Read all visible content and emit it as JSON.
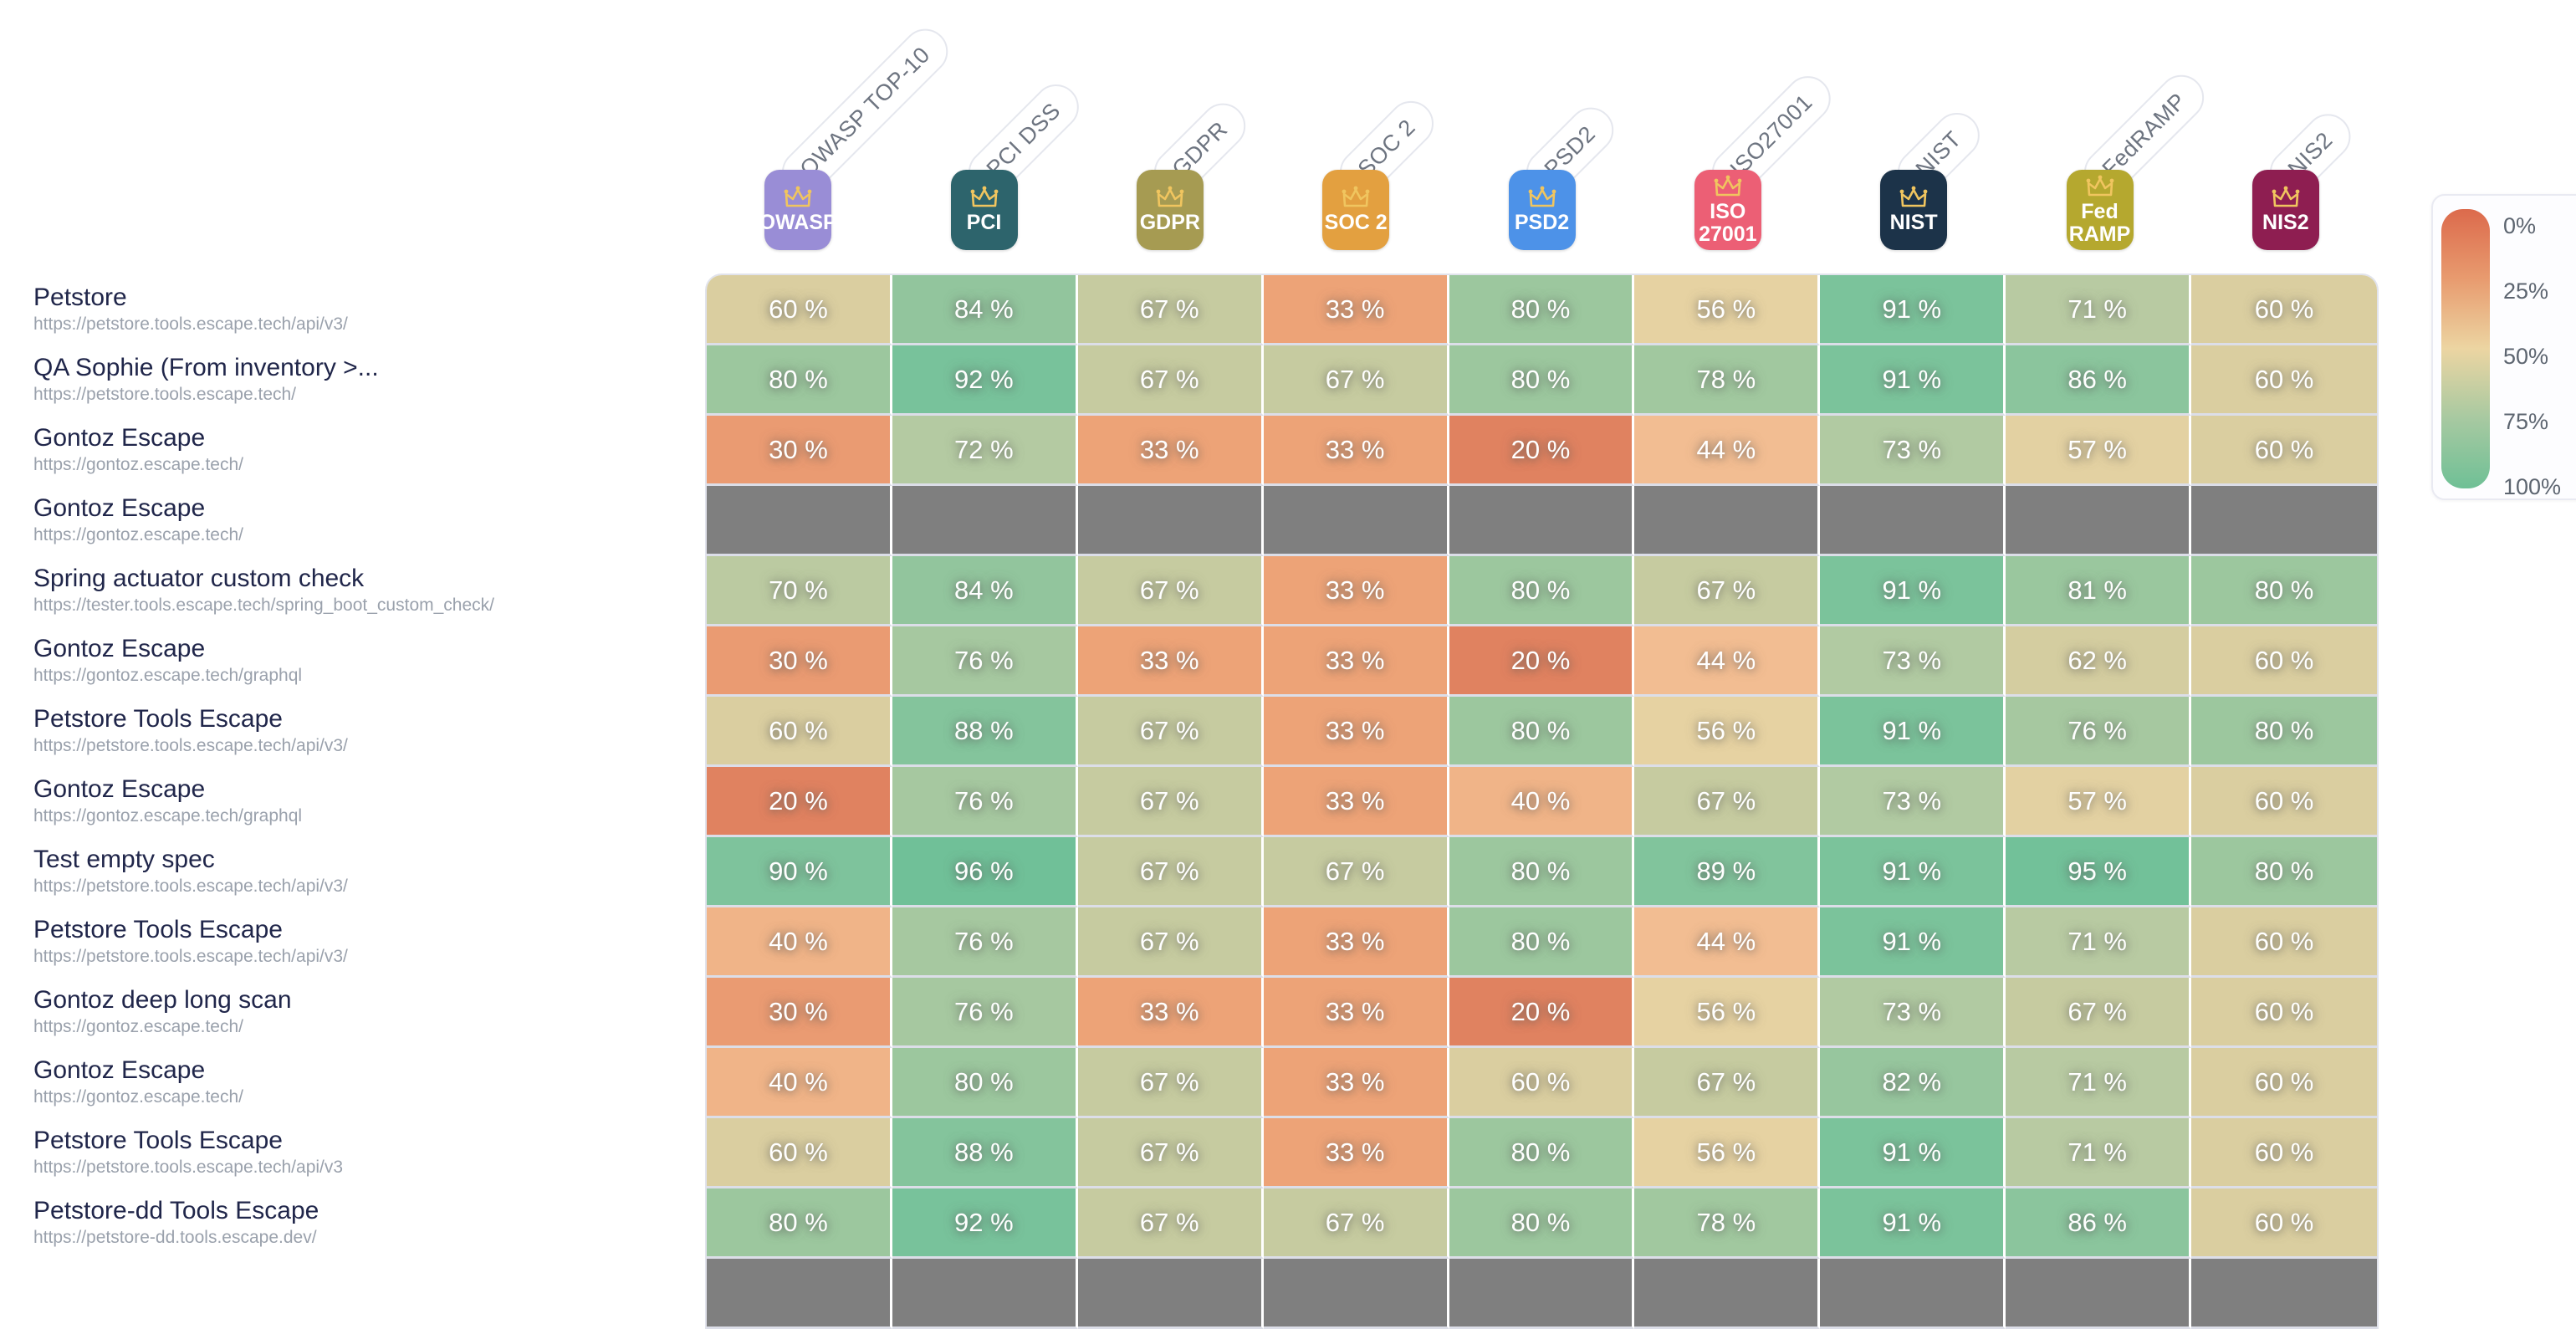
{
  "header": {
    "columns": [
      {
        "key": "owasp",
        "badge_label": "OWASP",
        "rotated_label": "OWASP TOP-10",
        "color": "#998dd6"
      },
      {
        "key": "pci",
        "badge_label": "PCI",
        "rotated_label": "PCI DSS",
        "color": "#2d646c"
      },
      {
        "key": "gdpr",
        "badge_label": "GDPR",
        "rotated_label": "GDPR",
        "color": "#a69b52"
      },
      {
        "key": "soc2",
        "badge_label": "SOC 2",
        "rotated_label": "SOC 2",
        "color": "#e3a040"
      },
      {
        "key": "psd2",
        "badge_label": "PSD2",
        "rotated_label": "PSD2",
        "color": "#4d92e8"
      },
      {
        "key": "iso27001",
        "badge_label": "ISO\n27001",
        "rotated_label": "ISO27001",
        "color": "#ec5f75"
      },
      {
        "key": "nist",
        "badge_label": "NIST",
        "rotated_label": "NIST",
        "color": "#1c3349"
      },
      {
        "key": "fedramp",
        "badge_label": "Fed\nRAMP",
        "rotated_label": "FedRAMP",
        "color": "#b5a82f"
      },
      {
        "key": "nis2",
        "badge_label": "NIS2",
        "rotated_label": "NIS2",
        "color": "#8e1e51"
      }
    ],
    "crown_icon_color": "#f0c55f"
  },
  "rows": [
    {
      "title": "Petstore",
      "url": "https://petstore.tools.escape.tech/api/v3/",
      "values": [
        60,
        84,
        67,
        33,
        80,
        56,
        91,
        71,
        60
      ]
    },
    {
      "title": "QA Sophie (From inventory >...",
      "url": "https://petstore.tools.escape.tech/",
      "values": [
        80,
        92,
        67,
        67,
        80,
        78,
        91,
        86,
        60
      ]
    },
    {
      "title": "Gontoz Escape",
      "url": "https://gontoz.escape.tech/",
      "values": [
        30,
        72,
        33,
        33,
        20,
        44,
        73,
        57,
        60
      ]
    },
    {
      "title": "Gontoz Escape",
      "url": "https://gontoz.escape.tech/",
      "values": null
    },
    {
      "title": "Spring actuator custom check",
      "url": "https://tester.tools.escape.tech/spring_boot_custom_check/",
      "values": [
        70,
        84,
        67,
        33,
        80,
        67,
        91,
        81,
        80
      ]
    },
    {
      "title": "Gontoz Escape",
      "url": "https://gontoz.escape.tech/graphql",
      "values": [
        30,
        76,
        33,
        33,
        20,
        44,
        73,
        62,
        60
      ]
    },
    {
      "title": "Petstore Tools Escape",
      "url": "https://petstore.tools.escape.tech/api/v3/",
      "values": [
        60,
        88,
        67,
        33,
        80,
        56,
        91,
        76,
        80
      ]
    },
    {
      "title": "Gontoz Escape",
      "url": "https://gontoz.escape.tech/graphql",
      "values": [
        20,
        76,
        67,
        33,
        40,
        67,
        73,
        57,
        60
      ]
    },
    {
      "title": "Test empty spec",
      "url": "https://petstore.tools.escape.tech/api/v3/",
      "values": [
        90,
        96,
        67,
        67,
        80,
        89,
        91,
        95,
        80
      ]
    },
    {
      "title": "Petstore Tools Escape",
      "url": "https://petstore.tools.escape.tech/api/v3/",
      "values": [
        40,
        76,
        67,
        33,
        80,
        44,
        91,
        71,
        60
      ]
    },
    {
      "title": "Gontoz deep long scan",
      "url": "https://gontoz.escape.tech/",
      "values": [
        30,
        76,
        33,
        33,
        20,
        56,
        73,
        67,
        60
      ]
    },
    {
      "title": "Gontoz Escape",
      "url": "https://gontoz.escape.tech/",
      "values": [
        40,
        80,
        67,
        33,
        60,
        67,
        82,
        71,
        60
      ]
    },
    {
      "title": "Petstore Tools Escape",
      "url": "https://petstore.tools.escape.tech/api/v3",
      "values": [
        60,
        88,
        67,
        33,
        80,
        56,
        91,
        71,
        60
      ]
    },
    {
      "title": "Petstore-dd Tools Escape",
      "url": "https://petstore-dd.tools.escape.dev/",
      "values": [
        80,
        92,
        67,
        67,
        80,
        78,
        91,
        86,
        60
      ]
    },
    {
      "title": "",
      "url": "",
      "values": null
    }
  ],
  "cell_value_suffix": " %",
  "gray_cell_color": "#7f7f7f",
  "color_scale_stops": [
    [
      0,
      "#dc6042"
    ],
    [
      20,
      "#e08260"
    ],
    [
      33,
      "#eda377"
    ],
    [
      44,
      "#f2bd92"
    ],
    [
      50,
      "#eed7a4"
    ],
    [
      56,
      "#e6d2a2"
    ],
    [
      60,
      "#dacea0"
    ],
    [
      67,
      "#c6cba0"
    ],
    [
      72,
      "#b4caa2"
    ],
    [
      76,
      "#a6c8a0"
    ],
    [
      80,
      "#9cc79e"
    ],
    [
      84,
      "#92c59d"
    ],
    [
      88,
      "#84c49c"
    ],
    [
      92,
      "#78c29b"
    ],
    [
      96,
      "#70c098"
    ],
    [
      100,
      "#6abf97"
    ]
  ],
  "legend": {
    "ticks": [
      "0%",
      "25%",
      "50%",
      "75%",
      "100%"
    ],
    "gradient_stops": [
      "#dc6a4c",
      "#e89b6f",
      "#ecd5a2",
      "#a7c9a1",
      "#6fc096"
    ]
  },
  "chart_data": {
    "type": "heatmap",
    "x_labels": [
      "OWASP TOP-10",
      "PCI DSS",
      "GDPR",
      "SOC 2",
      "PSD2",
      "ISO27001",
      "NIST",
      "FedRAMP",
      "NIS2"
    ],
    "y_labels": [
      "Petstore",
      "QA Sophie (From inventory >...",
      "Gontoz Escape",
      "Gontoz Escape",
      "Spring actuator custom check",
      "Gontoz Escape",
      "Petstore Tools Escape",
      "Gontoz Escape",
      "Test empty spec",
      "Petstore Tools Escape",
      "Gontoz deep long scan",
      "Gontoz Escape",
      "Petstore Tools Escape",
      "Petstore-dd Tools Escape"
    ],
    "values_percent": [
      [
        60,
        84,
        67,
        33,
        80,
        56,
        91,
        71,
        60
      ],
      [
        80,
        92,
        67,
        67,
        80,
        78,
        91,
        86,
        60
      ],
      [
        30,
        72,
        33,
        33,
        20,
        44,
        73,
        57,
        60
      ],
      [
        null,
        null,
        null,
        null,
        null,
        null,
        null,
        null,
        null
      ],
      [
        70,
        84,
        67,
        33,
        80,
        67,
        91,
        81,
        80
      ],
      [
        30,
        76,
        33,
        33,
        20,
        44,
        73,
        62,
        60
      ],
      [
        60,
        88,
        67,
        33,
        80,
        56,
        91,
        76,
        80
      ],
      [
        20,
        76,
        67,
        33,
        40,
        67,
        73,
        57,
        60
      ],
      [
        90,
        96,
        67,
        67,
        80,
        89,
        91,
        95,
        80
      ],
      [
        40,
        76,
        67,
        33,
        80,
        44,
        91,
        71,
        60
      ],
      [
        30,
        76,
        33,
        33,
        20,
        56,
        73,
        67,
        60
      ],
      [
        40,
        80,
        67,
        33,
        60,
        67,
        82,
        71,
        60
      ],
      [
        60,
        88,
        67,
        33,
        80,
        56,
        91,
        71,
        60
      ],
      [
        80,
        92,
        67,
        67,
        80,
        78,
        91,
        86,
        60
      ]
    ],
    "colorbar": {
      "min_label": "0%",
      "max_label": "100%",
      "ticks": [
        "0%",
        "25%",
        "50%",
        "75%",
        "100%"
      ]
    }
  }
}
